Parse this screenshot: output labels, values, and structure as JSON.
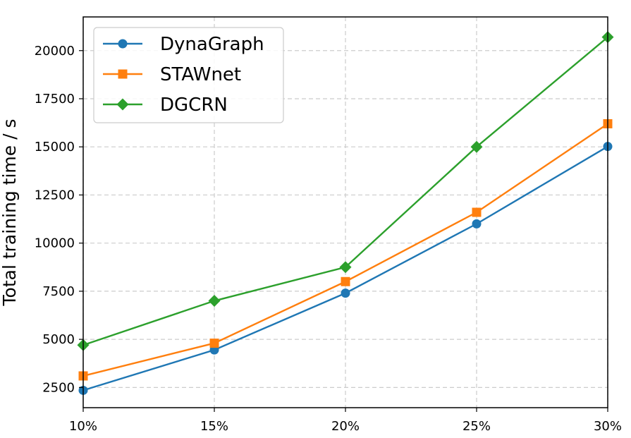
{
  "chart_data": {
    "type": "line",
    "x": [
      "10%",
      "15%",
      "20%",
      "25%",
      "30%"
    ],
    "series": [
      {
        "name": "DynaGraph",
        "values": [
          2350,
          4450,
          7400,
          11000,
          15020
        ],
        "color": "#1f77b4",
        "marker": "circle"
      },
      {
        "name": "STAWnet",
        "values": [
          3100,
          4800,
          8000,
          11600,
          16200
        ],
        "color": "#ff7f0e",
        "marker": "square"
      },
      {
        "name": "DGCRN",
        "values": [
          4700,
          7000,
          8750,
          15000,
          20700
        ],
        "color": "#2ca02c",
        "marker": "diamond"
      }
    ],
    "xlabel": "",
    "ylabel": "Total training time / s",
    "ylim": [
      1450,
      21750
    ],
    "yticks": [
      2500,
      5000,
      7500,
      10000,
      12500,
      15000,
      17500,
      20000
    ],
    "grid": true,
    "grid_style": "dashed",
    "legend_position": "top-left"
  }
}
